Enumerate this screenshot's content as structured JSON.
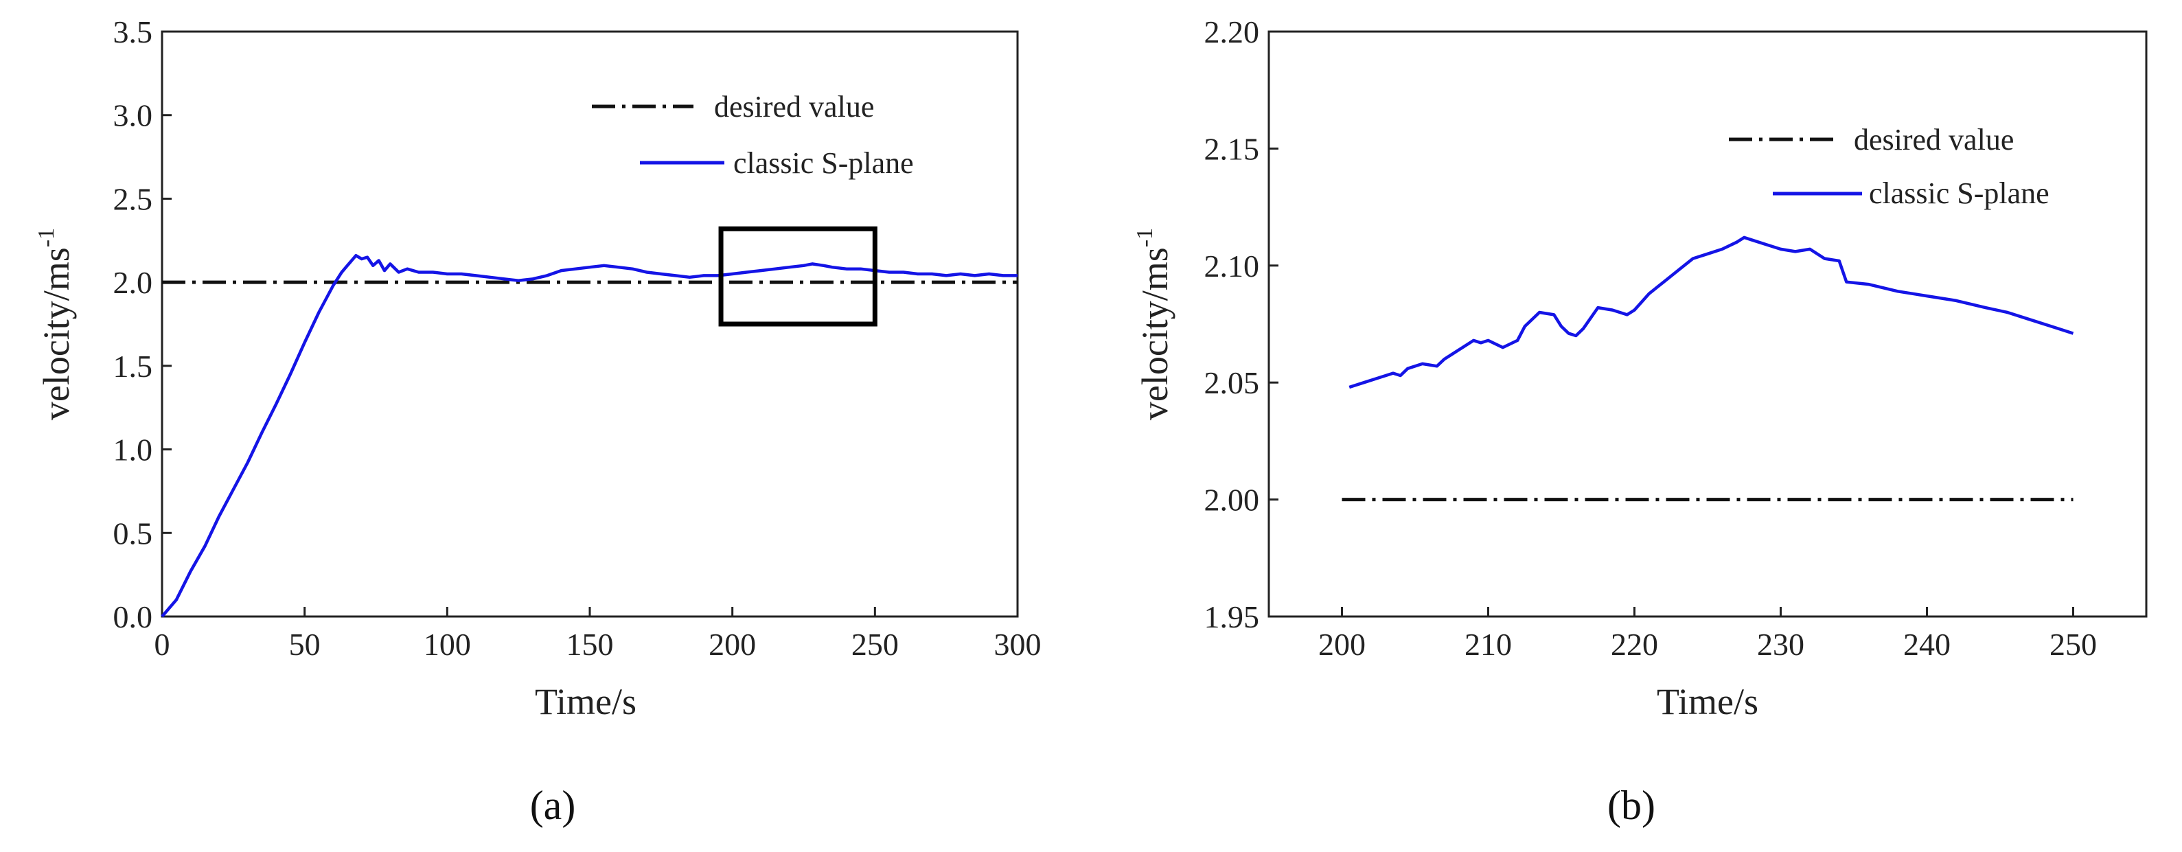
{
  "colors": {
    "desired": "#111111",
    "classic": "#1414e6",
    "axis": "#222222"
  },
  "chart_data": [
    {
      "type": "line",
      "panel": "a",
      "xlabel": "Time/s",
      "ylabel": "velocity/ms",
      "ylabel_sup": "-1",
      "xlim": [
        0,
        300
      ],
      "ylim": [
        0,
        3.5
      ],
      "xticks": [
        "0",
        "50",
        "100",
        "150",
        "200",
        "250",
        "300"
      ],
      "yticks": [
        "0.0",
        "0.5",
        "1.0",
        "1.5",
        "2.0",
        "2.5",
        "3.0",
        "3.5"
      ],
      "xtick_values": [
        0,
        50,
        100,
        150,
        200,
        250,
        300
      ],
      "ytick_values": [
        0,
        0.5,
        1.0,
        1.5,
        2.0,
        2.5,
        3.0,
        3.5
      ],
      "legend_position": "top-right",
      "zoom_box": {
        "x": [
          196,
          250
        ],
        "y": [
          1.75,
          2.32
        ]
      },
      "series": [
        {
          "name": "desired value",
          "style": "dash-dot",
          "x": [
            0,
            300
          ],
          "y": [
            2.0,
            2.0
          ]
        },
        {
          "name": "classic S-plane",
          "style": "solid",
          "x": [
            0,
            5,
            10,
            15,
            20,
            25,
            30,
            35,
            40,
            45,
            50,
            55,
            60,
            63,
            66,
            68,
            70,
            72,
            74,
            76,
            78,
            80,
            83,
            86,
            90,
            95,
            100,
            105,
            110,
            115,
            120,
            125,
            130,
            135,
            140,
            145,
            150,
            155,
            160,
            165,
            170,
            175,
            180,
            185,
            190,
            195,
            200,
            205,
            210,
            215,
            220,
            225,
            228,
            232,
            235,
            240,
            245,
            250,
            255,
            260,
            265,
            270,
            275,
            280,
            285,
            290,
            295,
            300
          ],
          "y": [
            0.0,
            0.1,
            0.27,
            0.42,
            0.6,
            0.76,
            0.92,
            1.1,
            1.27,
            1.45,
            1.64,
            1.82,
            1.98,
            2.06,
            2.12,
            2.16,
            2.14,
            2.15,
            2.1,
            2.13,
            2.07,
            2.11,
            2.06,
            2.08,
            2.06,
            2.06,
            2.05,
            2.05,
            2.04,
            2.03,
            2.02,
            2.01,
            2.02,
            2.04,
            2.07,
            2.08,
            2.09,
            2.1,
            2.09,
            2.08,
            2.06,
            2.05,
            2.04,
            2.03,
            2.04,
            2.04,
            2.05,
            2.06,
            2.07,
            2.08,
            2.09,
            2.1,
            2.11,
            2.1,
            2.09,
            2.08,
            2.08,
            2.07,
            2.06,
            2.06,
            2.05,
            2.05,
            2.04,
            2.05,
            2.04,
            2.05,
            2.04,
            2.04
          ]
        }
      ]
    },
    {
      "type": "line",
      "panel": "b",
      "xlabel": "Time/s",
      "ylabel": "velocity/ms",
      "ylabel_sup": "-1",
      "xlim": [
        195,
        255
      ],
      "ylim": [
        1.95,
        2.2
      ],
      "xticks": [
        "200",
        "210",
        "220",
        "230",
        "240",
        "250"
      ],
      "yticks": [
        "1.95",
        "2.00",
        "2.05",
        "2.10",
        "2.15",
        "2.20"
      ],
      "xtick_values": [
        200,
        210,
        220,
        230,
        240,
        250
      ],
      "ytick_values": [
        1.95,
        2.0,
        2.05,
        2.1,
        2.15,
        2.2
      ],
      "legend_position": "top-right",
      "series": [
        {
          "name": "desired value",
          "style": "dash-dot",
          "x": [
            200,
            250
          ],
          "y": [
            2.0,
            2.0
          ]
        },
        {
          "name": "classic S-plane",
          "style": "solid",
          "x": [
            200.5,
            201.5,
            202.5,
            203.5,
            204.0,
            204.5,
            205.5,
            206.5,
            207.0,
            207.5,
            208.0,
            209.0,
            209.5,
            210.0,
            211.0,
            212.0,
            212.5,
            213.5,
            214.5,
            215.0,
            215.5,
            216.0,
            216.5,
            217.5,
            218.5,
            219.5,
            220.0,
            221.0,
            222.0,
            223.0,
            224.0,
            225.0,
            226.0,
            227.0,
            227.5,
            228.0,
            229.0,
            230.0,
            231.0,
            232.0,
            233.0,
            234.0,
            234.5,
            236.0,
            238.0,
            240.0,
            242.0,
            244.0,
            245.5,
            247.0,
            248.5,
            250.0
          ],
          "y": [
            2.048,
            2.05,
            2.052,
            2.054,
            2.053,
            2.056,
            2.058,
            2.057,
            2.06,
            2.062,
            2.064,
            2.068,
            2.067,
            2.068,
            2.065,
            2.068,
            2.074,
            2.08,
            2.079,
            2.074,
            2.071,
            2.07,
            2.073,
            2.082,
            2.081,
            2.079,
            2.081,
            2.088,
            2.093,
            2.098,
            2.103,
            2.105,
            2.107,
            2.11,
            2.112,
            2.111,
            2.109,
            2.107,
            2.106,
            2.107,
            2.103,
            2.102,
            2.093,
            2.092,
            2.089,
            2.087,
            2.085,
            2.082,
            2.08,
            2.077,
            2.074,
            2.071
          ]
        }
      ]
    }
  ],
  "panel_labels": [
    "(a)",
    "(b)"
  ]
}
